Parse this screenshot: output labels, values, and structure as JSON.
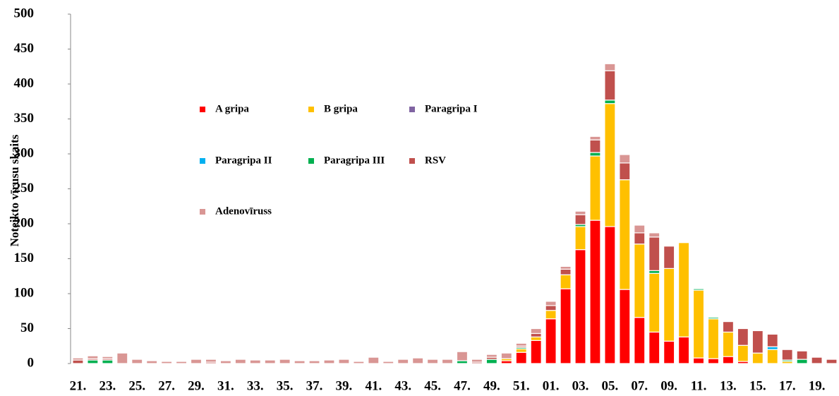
{
  "chart_data": {
    "type": "stacked_bar",
    "y_label": "Noteikto vīrusu skaits",
    "categories": [
      "21.",
      null,
      "23.",
      null,
      "25.",
      null,
      "27.",
      null,
      "29.",
      null,
      "31.",
      null,
      "33.",
      null,
      "35.",
      null,
      "37.",
      null,
      "39.",
      null,
      "41.",
      null,
      "43.",
      null,
      "45.",
      null,
      "47.",
      null,
      "49.",
      null,
      "51.",
      null,
      "01.",
      null,
      "03.",
      null,
      "05.",
      null,
      "07.",
      null,
      "09.",
      null,
      "11.",
      null,
      "13.",
      null,
      "15.",
      null,
      "17.",
      null,
      "19.",
      null
    ],
    "series": [
      {
        "name": "A gripa",
        "color": "#ff0000",
        "values": [
          0,
          0,
          0,
          0,
          0,
          0,
          0,
          0,
          0,
          0,
          0,
          0,
          0,
          0,
          0,
          0,
          0,
          0,
          0,
          0,
          0,
          0,
          0,
          0,
          0,
          0,
          0,
          0,
          0,
          4,
          16,
          33,
          64,
          107,
          163,
          205,
          196,
          106,
          66,
          45,
          32,
          38,
          8,
          7,
          10,
          3,
          0,
          0,
          0,
          0,
          0,
          0
        ]
      },
      {
        "name": "B gripa",
        "color": "#ffc000",
        "values": [
          0,
          0,
          0,
          0,
          0,
          0,
          0,
          0,
          0,
          0,
          0,
          0,
          0,
          0,
          0,
          0,
          0,
          0,
          0,
          0,
          0,
          0,
          0,
          0,
          0,
          0,
          0,
          0,
          0,
          3,
          5,
          5,
          12,
          20,
          33,
          92,
          176,
          157,
          105,
          84,
          104,
          135,
          97,
          57,
          35,
          23,
          15,
          20,
          3,
          0,
          0,
          0
        ]
      },
      {
        "name": "Paragripa I",
        "color": "#8064a2",
        "values": [
          0,
          0,
          0,
          0,
          0,
          0,
          0,
          0,
          0,
          0,
          0,
          0,
          0,
          0,
          0,
          0,
          0,
          0,
          0,
          0,
          0,
          0,
          0,
          0,
          0,
          0,
          0,
          0,
          0,
          0,
          0,
          0,
          0,
          0,
          0,
          0,
          0,
          0,
          0,
          0,
          0,
          0,
          0,
          0,
          0,
          0,
          0,
          0,
          0,
          0,
          0,
          0
        ]
      },
      {
        "name": "Paragripa II",
        "color": "#00b0f0",
        "values": [
          0,
          0,
          0,
          0,
          0,
          0,
          0,
          0,
          0,
          0,
          0,
          0,
          0,
          0,
          0,
          0,
          0,
          0,
          0,
          0,
          0,
          0,
          0,
          0,
          0,
          0,
          0,
          0,
          0,
          0,
          0,
          0,
          0,
          0,
          0,
          0,
          0,
          0,
          0,
          0,
          0,
          0,
          0,
          0,
          0,
          0,
          0,
          4,
          0,
          0,
          0,
          0
        ]
      },
      {
        "name": "Paragripa III",
        "color": "#00b050",
        "values": [
          0,
          5,
          5,
          0,
          0,
          0,
          0,
          0,
          0,
          0,
          0,
          0,
          0,
          0,
          0,
          0,
          0,
          0,
          0,
          0,
          0,
          0,
          0,
          0,
          0,
          0,
          4,
          0,
          6,
          0,
          2,
          0,
          0,
          0,
          3,
          5,
          5,
          0,
          0,
          4,
          0,
          0,
          2,
          2,
          0,
          0,
          0,
          0,
          2,
          6,
          0,
          0
        ]
      },
      {
        "name": "RSV",
        "color": "#c0504d",
        "values": [
          5,
          2,
          2,
          0,
          0,
          0,
          0,
          0,
          0,
          2,
          0,
          0,
          0,
          0,
          0,
          0,
          0,
          0,
          0,
          0,
          0,
          0,
          0,
          0,
          0,
          0,
          0,
          2,
          3,
          0,
          2,
          5,
          7,
          8,
          14,
          18,
          42,
          24,
          16,
          48,
          32,
          0,
          0,
          0,
          15,
          24,
          32,
          18,
          15,
          12,
          9,
          6
        ]
      },
      {
        "name": "Adenovīruss",
        "color": "#d99694",
        "values": [
          3,
          4,
          3,
          15,
          6,
          4,
          3,
          3,
          6,
          4,
          4,
          6,
          5,
          5,
          6,
          4,
          4,
          5,
          6,
          3,
          9,
          3,
          6,
          8,
          6,
          6,
          13,
          4,
          4,
          8,
          4,
          7,
          6,
          4,
          5,
          5,
          10,
          12,
          11,
          6,
          0,
          0,
          0,
          0,
          0,
          0,
          0,
          0,
          0,
          0,
          0,
          0
        ]
      }
    ],
    "ylim": [
      0,
      500
    ],
    "yticks": [
      0,
      50,
      100,
      150,
      200,
      250,
      300,
      350,
      400,
      450,
      500
    ],
    "grid": false
  }
}
